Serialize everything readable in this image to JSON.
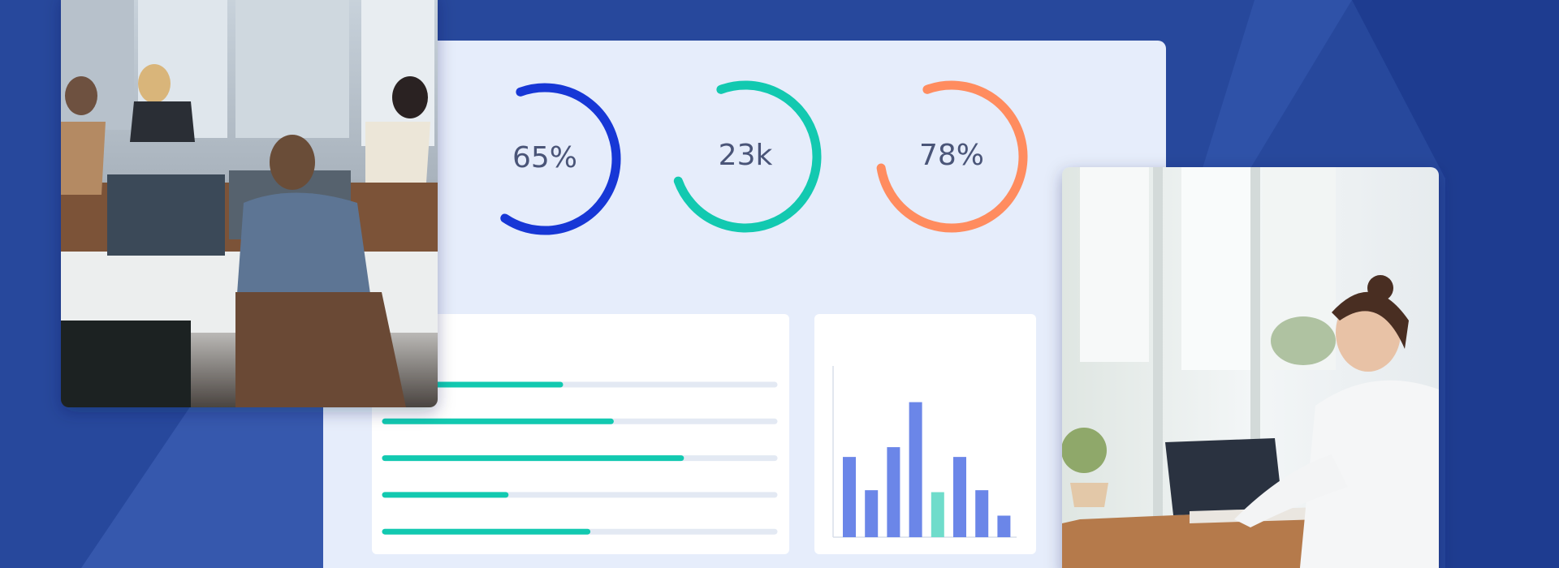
{
  "rings": [
    {
      "label": "65%",
      "progress": 65,
      "color": "#1737d6"
    },
    {
      "label": "23k",
      "progress": 75,
      "color": "#12c9b0"
    },
    {
      "label": "78%",
      "progress": 78,
      "color": "#ff8c5f"
    }
  ],
  "progress_bars": {
    "values": [
      45,
      58,
      76,
      31,
      52
    ],
    "max": 100,
    "color": "#12c9b0",
    "track_color": "#e3e9f3"
  },
  "bar_chart": {
    "values": [
      82,
      48,
      92,
      138,
      46,
      82,
      48,
      22
    ],
    "ylim": [
      0,
      175
    ],
    "colors": [
      "#6b86e8",
      "#6b86e8",
      "#6b86e8",
      "#6b86e8",
      "#6fdccb",
      "#6b86e8",
      "#6b86e8",
      "#6b86e8"
    ]
  }
}
